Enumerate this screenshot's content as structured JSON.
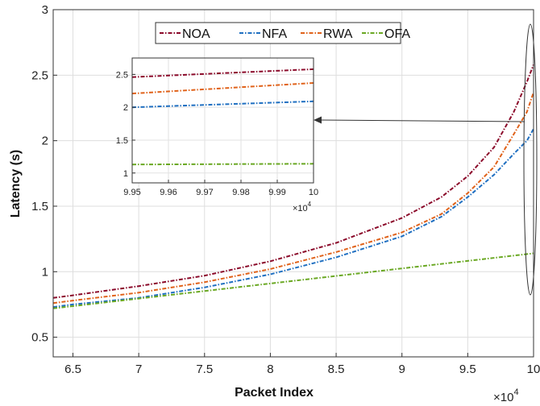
{
  "chart_data": {
    "type": "line",
    "xlabel": "Packet Index",
    "ylabel": "Latency (s)",
    "x_multiplier": "×10",
    "x_multiplier_exp": "4",
    "xlim": [
      6.35,
      10
    ],
    "ylim": [
      0.35,
      3
    ],
    "xticks": [
      "6.5",
      "7",
      "7.5",
      "8",
      "8.5",
      "9",
      "9.5",
      "10"
    ],
    "yticks": [
      "0.5",
      "1",
      "1.5",
      "2",
      "2.5",
      "3"
    ],
    "grid": true,
    "legend_position": "top-center",
    "series": [
      {
        "name": "NOA",
        "color": "#8b0a2a",
        "x": [
          6.35,
          6.5,
          7,
          7.5,
          8,
          8.5,
          9,
          9.3,
          9.5,
          9.7,
          9.85,
          9.95,
          10
        ],
        "y": [
          0.8,
          0.82,
          0.89,
          0.97,
          1.08,
          1.22,
          1.41,
          1.57,
          1.73,
          1.95,
          2.22,
          2.45,
          2.58
        ]
      },
      {
        "name": "NFA",
        "color": "#1f6fc1",
        "x": [
          6.35,
          6.5,
          7,
          7.5,
          8,
          8.5,
          9,
          9.3,
          9.5,
          9.7,
          9.85,
          9.95,
          10
        ],
        "y": [
          0.73,
          0.75,
          0.8,
          0.88,
          0.98,
          1.11,
          1.27,
          1.42,
          1.57,
          1.74,
          1.9,
          2.0,
          2.09
        ]
      },
      {
        "name": "RWA",
        "color": "#e0621a",
        "x": [
          6.35,
          6.5,
          7,
          7.5,
          8,
          8.5,
          9,
          9.3,
          9.5,
          9.7,
          9.85,
          9.95,
          10
        ],
        "y": [
          0.76,
          0.78,
          0.84,
          0.92,
          1.02,
          1.15,
          1.3,
          1.44,
          1.6,
          1.8,
          2.05,
          2.22,
          2.37
        ]
      },
      {
        "name": "OFA",
        "color": "#6aa823",
        "x": [
          6.35,
          10
        ],
        "y": [
          0.72,
          1.14
        ]
      }
    ],
    "inset": {
      "xlim": [
        9.95,
        10
      ],
      "ylim": [
        0.85,
        2.75
      ],
      "xticks": [
        "9.95",
        "9.96",
        "9.97",
        "9.98",
        "9.99",
        "10"
      ],
      "yticks": [
        "1",
        "1.5",
        "2",
        "2.5"
      ],
      "x_multiplier": "×10",
      "x_multiplier_exp": "4",
      "series": [
        {
          "name": "NOA",
          "color": "#8b0a2a",
          "x": [
            9.95,
            10
          ],
          "y": [
            2.46,
            2.58
          ]
        },
        {
          "name": "NFA",
          "color": "#1f6fc1",
          "x": [
            9.95,
            10
          ],
          "y": [
            2.0,
            2.09
          ]
        },
        {
          "name": "RWA",
          "color": "#e0621a",
          "x": [
            9.95,
            10
          ],
          "y": [
            2.21,
            2.37
          ]
        },
        {
          "name": "OFA",
          "color": "#6aa823",
          "x": [
            9.95,
            10
          ],
          "y": [
            1.13,
            1.14
          ]
        }
      ]
    }
  }
}
